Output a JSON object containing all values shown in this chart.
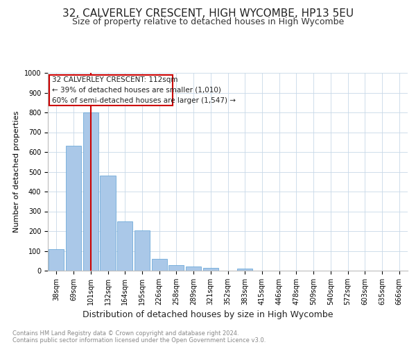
{
  "title": "32, CALVERLEY CRESCENT, HIGH WYCOMBE, HP13 5EU",
  "subtitle": "Size of property relative to detached houses in High Wycombe",
  "xlabel": "Distribution of detached houses by size in High Wycombe",
  "ylabel": "Number of detached properties",
  "footer1": "Contains HM Land Registry data © Crown copyright and database right 2024.",
  "footer2": "Contains public sector information licensed under the Open Government Licence v3.0.",
  "bins": [
    "38sqm",
    "69sqm",
    "101sqm",
    "132sqm",
    "164sqm",
    "195sqm",
    "226sqm",
    "258sqm",
    "289sqm",
    "321sqm",
    "352sqm",
    "383sqm",
    "415sqm",
    "446sqm",
    "478sqm",
    "509sqm",
    "540sqm",
    "572sqm",
    "603sqm",
    "635sqm",
    "666sqm"
  ],
  "values": [
    110,
    630,
    800,
    480,
    250,
    205,
    60,
    28,
    22,
    14,
    0,
    10,
    0,
    0,
    0,
    0,
    0,
    0,
    0,
    0
  ],
  "bar_color": "#aac8e8",
  "bar_edge_color": "#5a9fd4",
  "ylim": [
    0,
    1000
  ],
  "yticks": [
    0,
    100,
    200,
    300,
    400,
    500,
    600,
    700,
    800,
    900,
    1000
  ],
  "property_bin_index": 2,
  "vline_color": "#cc0000",
  "annotation_text_line1": "32 CALVERLEY CRESCENT: 112sqm",
  "annotation_text_line2": "← 39% of detached houses are smaller (1,010)",
  "annotation_text_line3": "60% of semi-detached houses are larger (1,547) →",
  "grid_color": "#c8d8e8",
  "background_color": "#ffffff",
  "title_fontsize": 11,
  "subtitle_fontsize": 9,
  "ylabel_fontsize": 8,
  "xlabel_fontsize": 9,
  "tick_fontsize": 7,
  "footer_fontsize": 6,
  "annot_fontsize": 7.5
}
